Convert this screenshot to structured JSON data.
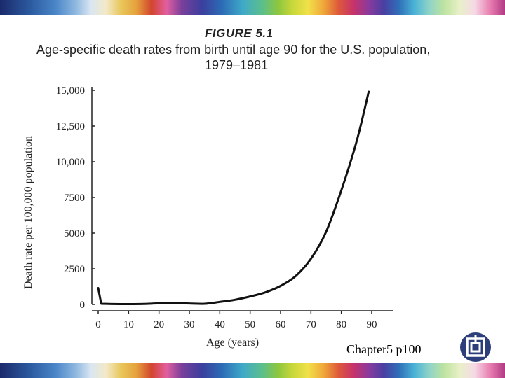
{
  "colors": {
    "line": "#111111",
    "axis": "#222222"
  },
  "chart_data": {
    "type": "line",
    "figure_label": "FIGURE 5.1",
    "title_line1": "Age-specific death rates from birth until age 90 for the U.S. population,",
    "title_line2": "1979–1981",
    "xlabel": "Age (years)",
    "ylabel": "Death rate per 100,000 population",
    "xlim": [
      -2,
      97
    ],
    "ylim": [
      0,
      15000
    ],
    "x_ticks": [
      0,
      10,
      20,
      30,
      40,
      50,
      60,
      70,
      80,
      90
    ],
    "y_ticks": [
      0,
      2500,
      5000,
      7500,
      10000,
      12500,
      15000
    ],
    "y_tick_labels": [
      "0",
      "2500",
      "5000",
      "7500",
      "10,000",
      "12,500",
      "15,000"
    ],
    "grid": false,
    "series": [
      {
        "name": "Death rate",
        "x": [
          0,
          1,
          5,
          10,
          15,
          20,
          25,
          30,
          35,
          40,
          45,
          50,
          55,
          60,
          65,
          70,
          75,
          80,
          85,
          89
        ],
        "y": [
          1150,
          50,
          30,
          25,
          35,
          80,
          90,
          70,
          50,
          180,
          330,
          560,
          850,
          1300,
          2000,
          3200,
          5100,
          8000,
          11400,
          14900
        ]
      }
    ]
  },
  "footer": {
    "caption": "Chapter5 p100",
    "logo_icon": "university-logo-icon"
  }
}
